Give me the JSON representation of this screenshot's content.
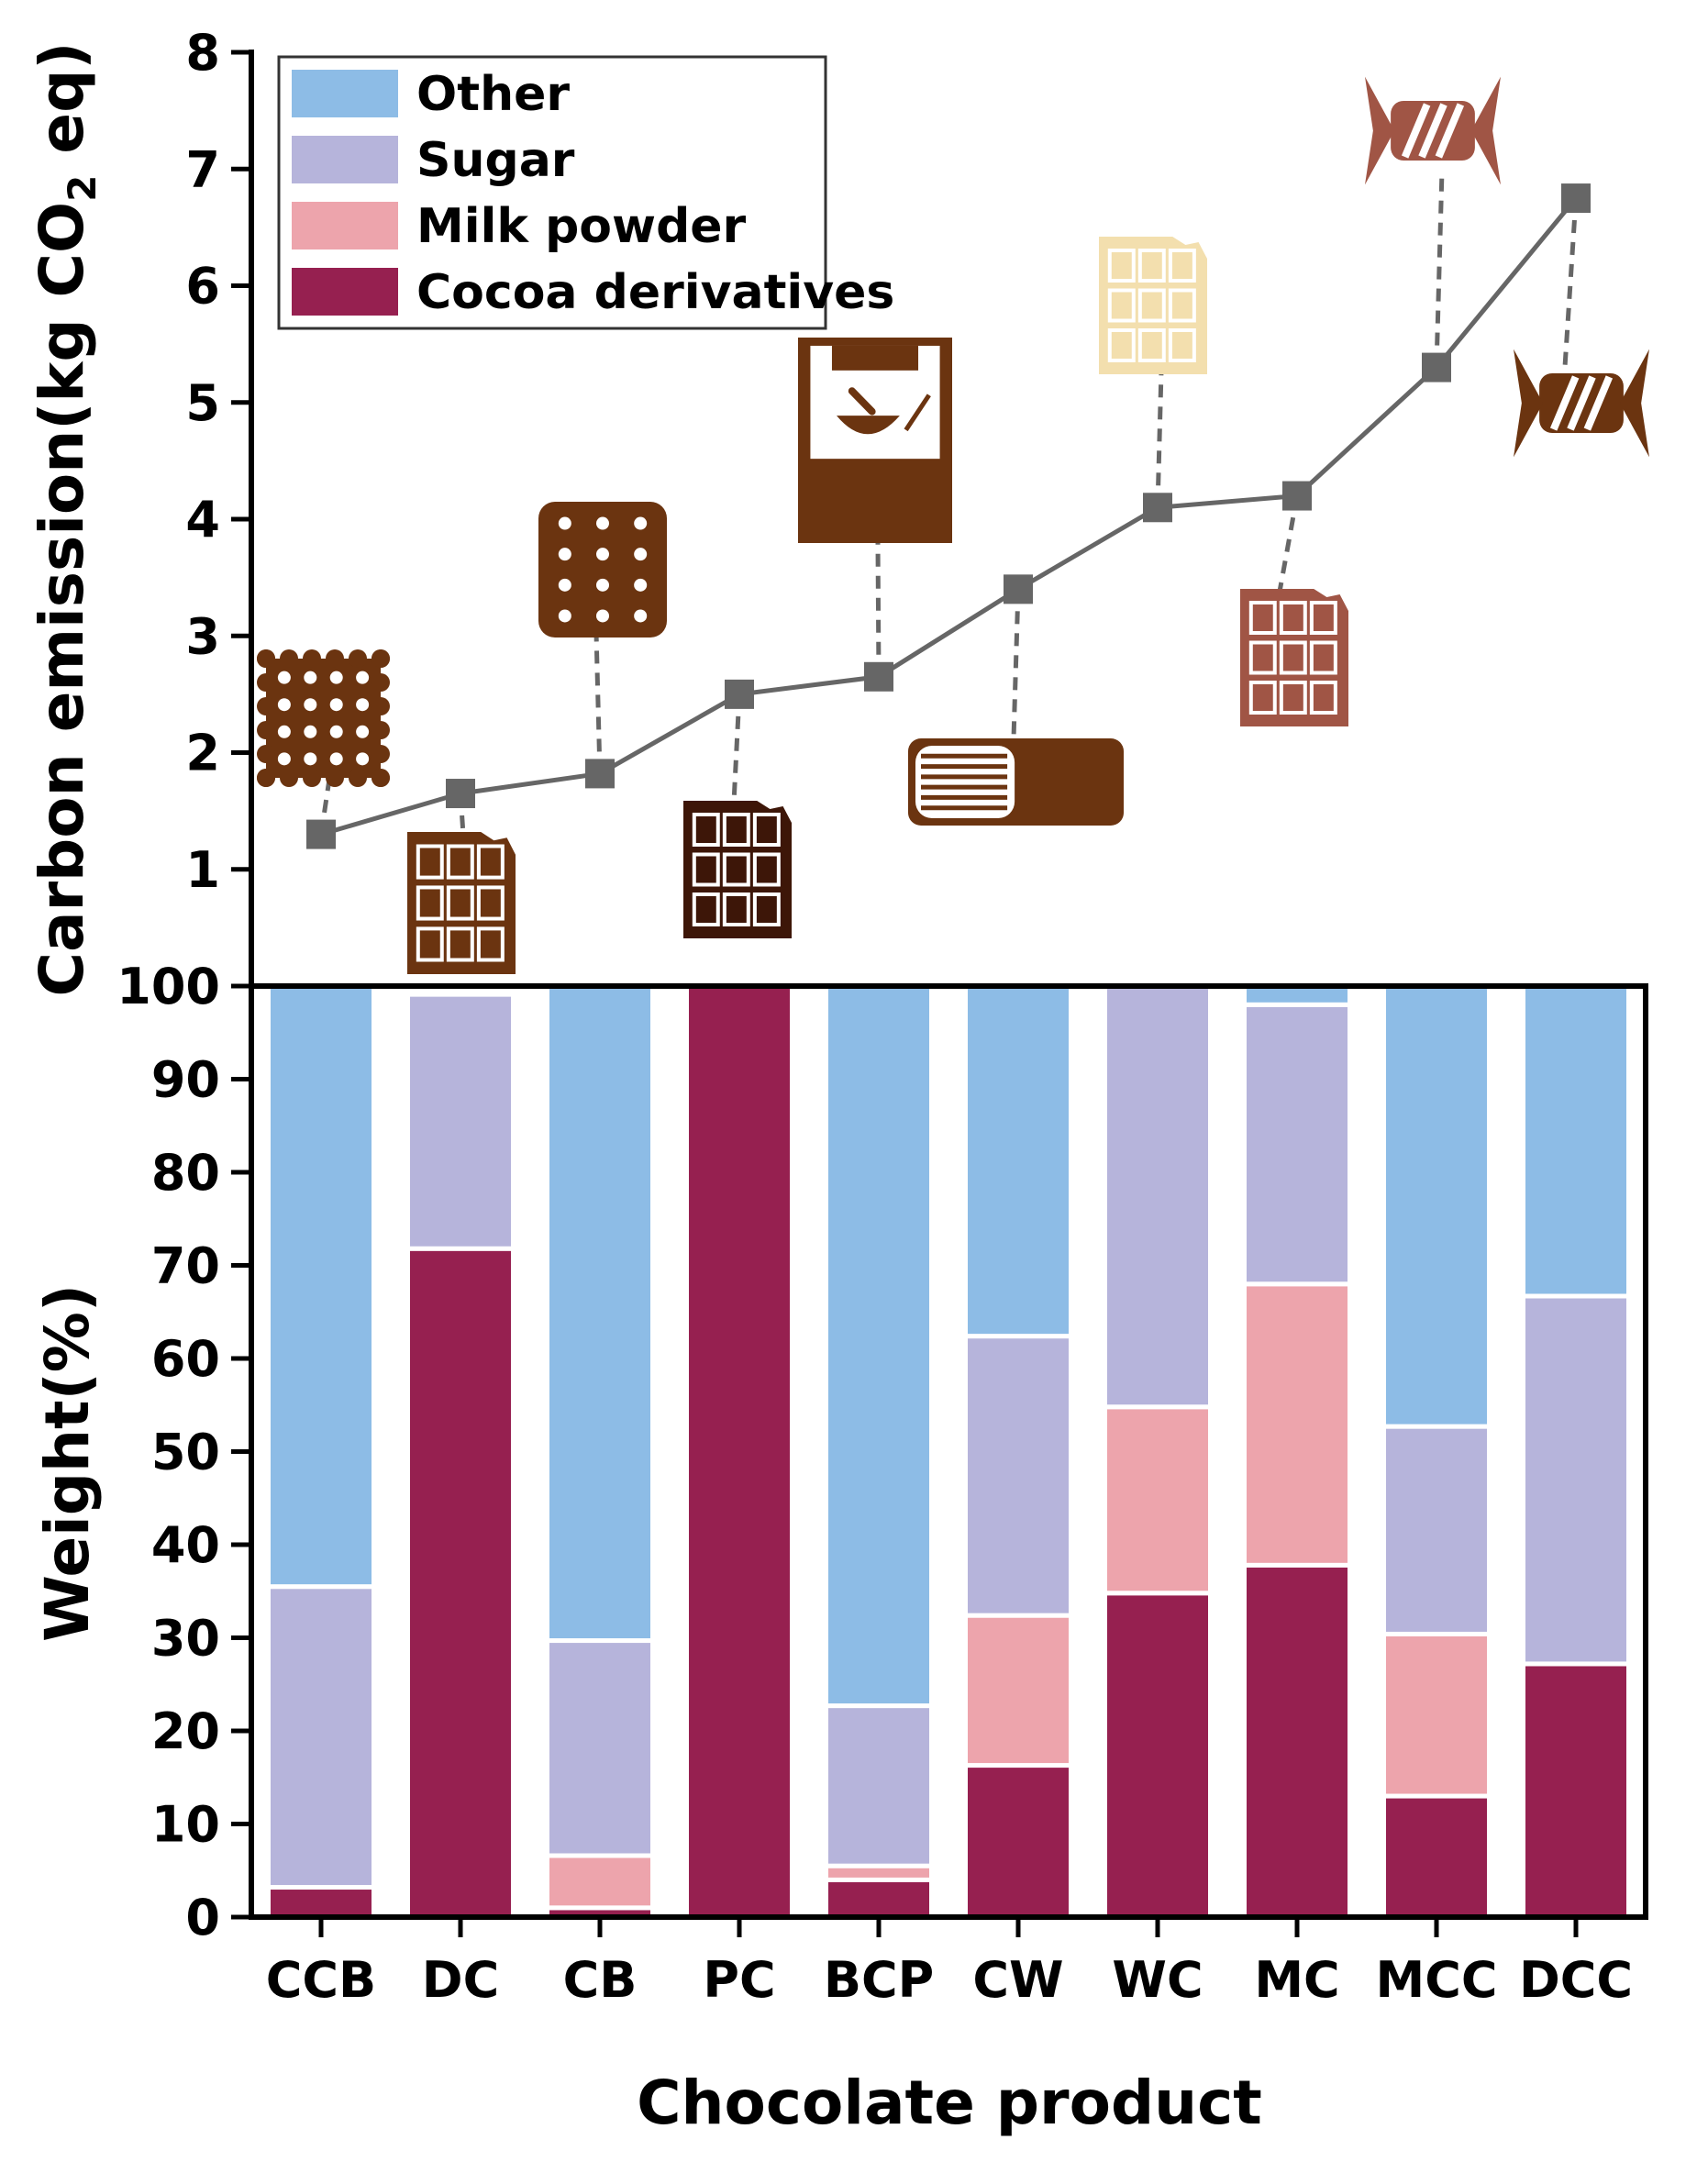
{
  "chart_data": [
    {
      "type": "line",
      "ylabel": "Carbon emission(kg CO2 eq)",
      "ylabel_parts": {
        "pre": "Carbon emission(kg CO",
        "sub": "2",
        "post": " eq)"
      },
      "ylim": [
        0,
        8
      ],
      "yticks": [
        1,
        2,
        3,
        4,
        5,
        6,
        7,
        8
      ],
      "categories": [
        "CCB",
        "DC",
        "CB",
        "PC",
        "BCP",
        "CW",
        "WC",
        "MC",
        "MCC",
        "DCC"
      ],
      "values": [
        1.3,
        1.65,
        1.82,
        2.5,
        2.65,
        3.4,
        4.1,
        4.2,
        5.3,
        6.75
      ],
      "product_icons": [
        {
          "category": "CCB",
          "icon": "sandwich-cookie-icon",
          "color": "#6B3410"
        },
        {
          "category": "DC",
          "icon": "chocolate-bar-icon",
          "color": "#6B3410"
        },
        {
          "category": "CB",
          "icon": "biscuit-icon",
          "color": "#6B3410"
        },
        {
          "category": "PC",
          "icon": "chocolate-bar-icon",
          "color": "#3D1608"
        },
        {
          "category": "BCP",
          "icon": "cocoa-powder-bag-icon",
          "color": "#6B3410"
        },
        {
          "category": "CW",
          "icon": "chocolate-wafer-icon",
          "color": "#6B3410"
        },
        {
          "category": "WC",
          "icon": "chocolate-bar-icon",
          "color": "#F3DFAE"
        },
        {
          "category": "MC",
          "icon": "chocolate-bar-icon",
          "color": "#A05545"
        },
        {
          "category": "MCC",
          "icon": "wrapped-candy-icon",
          "color": "#A05545"
        },
        {
          "category": "DCC",
          "icon": "wrapped-candy-icon",
          "color": "#6B3410"
        }
      ]
    },
    {
      "type": "bar",
      "stacked": true,
      "xlabel": "Chocolate product",
      "ylabel": "Weight(%)",
      "ylim": [
        0,
        100
      ],
      "yticks": [
        0,
        10,
        20,
        30,
        40,
        50,
        60,
        70,
        80,
        90,
        100
      ],
      "categories": [
        "CCB",
        "DC",
        "CB",
        "PC",
        "BCP",
        "CW",
        "WC",
        "MC",
        "MCC",
        "DCC"
      ],
      "series": [
        {
          "name": "Cocoa derivatives",
          "color": "#962050",
          "values": [
            3.2,
            71.8,
            1.0,
            100.0,
            4.0,
            16.3,
            34.8,
            37.8,
            13.0,
            27.2
          ]
        },
        {
          "name": "Milk powder",
          "color": "#EDA4AC",
          "values": [
            0.0,
            0.0,
            5.6,
            0.0,
            1.5,
            16.1,
            20.0,
            30.2,
            17.4,
            0.0
          ]
        },
        {
          "name": "Sugar",
          "color": "#B6B4DB",
          "values": [
            32.3,
            27.3,
            23.1,
            0.0,
            17.2,
            30.0,
            45.2,
            30.0,
            22.3,
            39.5
          ]
        },
        {
          "name": "Other",
          "color": "#8DBCE6",
          "values": [
            64.5,
            0.0,
            70.3,
            0.0,
            77.3,
            37.6,
            0.0,
            2.0,
            47.3,
            33.3
          ]
        }
      ],
      "legend": {
        "placement": "top-left",
        "entries": [
          {
            "name": "Other",
            "color": "#8DBCE6"
          },
          {
            "name": "Sugar",
            "color": "#B6B4DB"
          },
          {
            "name": "Milk powder",
            "color": "#EDA4AC"
          },
          {
            "name": "Cocoa derivatives",
            "color": "#962050"
          }
        ]
      }
    }
  ]
}
